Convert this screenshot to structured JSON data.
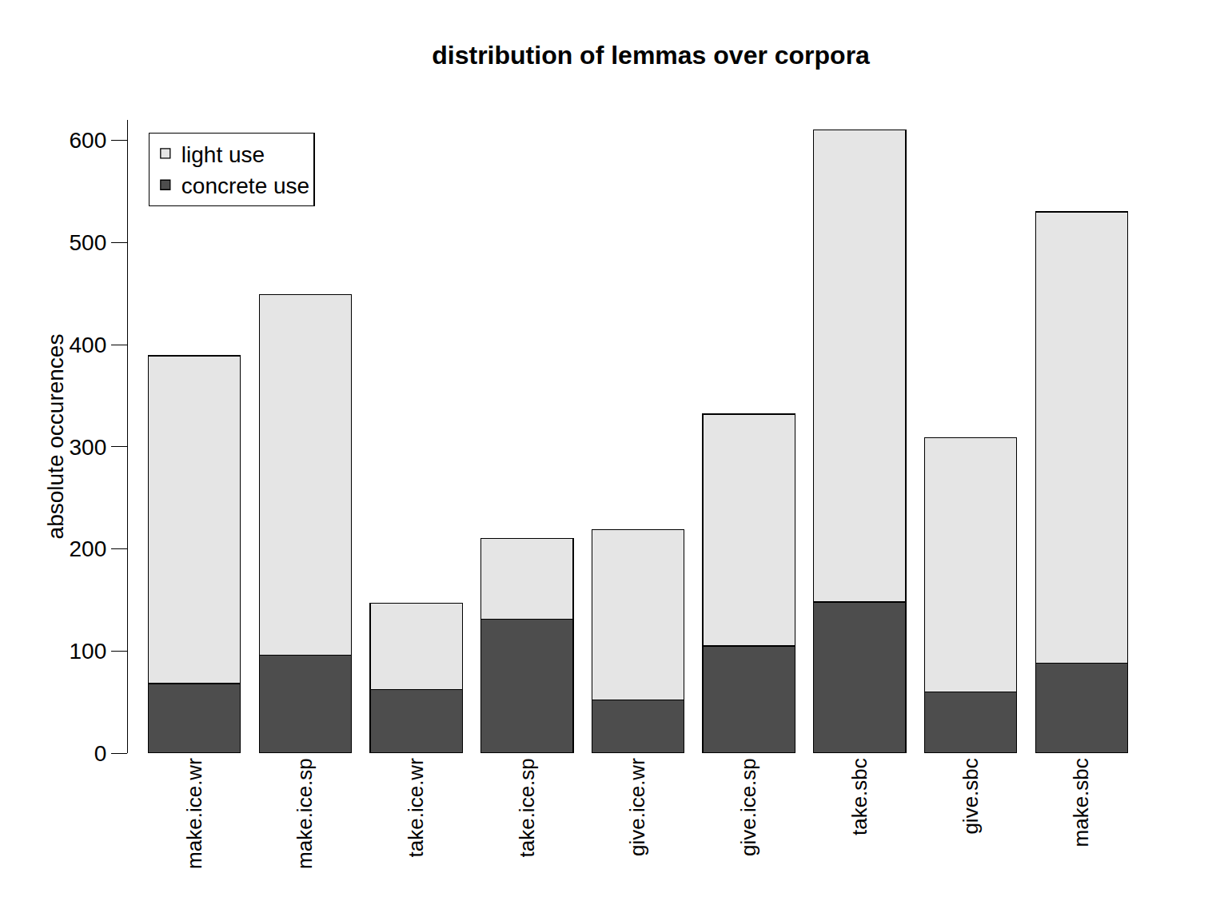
{
  "chart_data": {
    "type": "bar",
    "title": "distribution of lemmas over corpora",
    "y_label": "absolute occurences",
    "categories": [
      "make.ice.wr",
      "make.ice.sp",
      "take.ice.wr",
      "take.ice.sp",
      "give.ice.wr",
      "give.ice.sp",
      "take.sbc",
      "give.sbc",
      "make.sbc"
    ],
    "series": [
      {
        "name": "concrete use",
        "color": "#4d4d4d",
        "values": [
          68,
          96,
          62,
          131,
          52,
          105,
          148,
          60,
          88
        ]
      },
      {
        "name": "light use",
        "color": "#e5e5e5",
        "values": [
          321,
          353,
          85,
          79,
          167,
          227,
          462,
          249,
          442
        ]
      }
    ],
    "stacked": true,
    "ylim": [
      0,
      620
    ],
    "yticks": [
      0,
      100,
      200,
      300,
      400,
      500,
      600
    ],
    "grid": false,
    "legend": "top left"
  }
}
